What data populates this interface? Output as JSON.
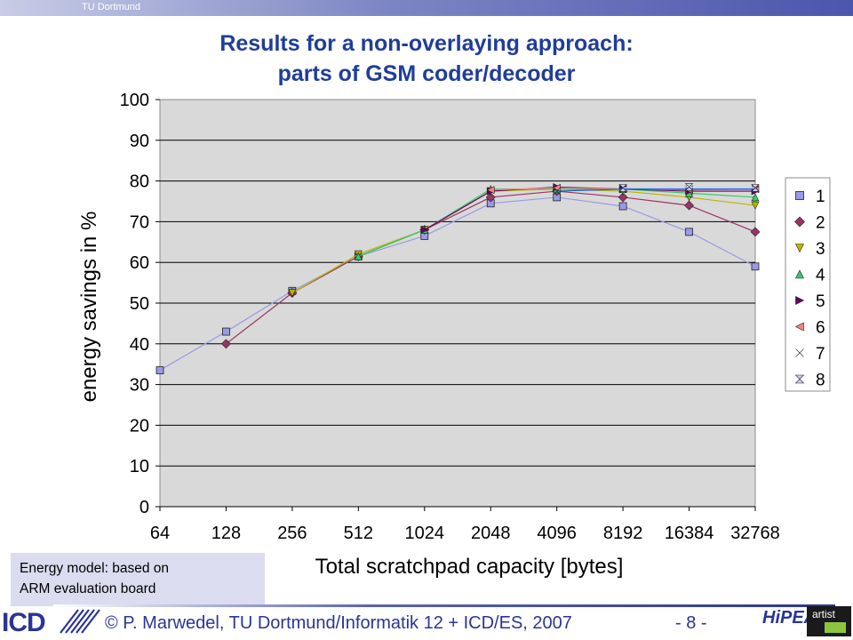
{
  "header": {
    "institution": "TU Dortmund"
  },
  "slide": {
    "title_line1": "Results for a non-overlaying approach:",
    "title_line2": "parts of GSM coder/decoder"
  },
  "note": {
    "line1": "Energy model: based on",
    "line2": "ARM evaluation board"
  },
  "footer": {
    "logo": "ICD",
    "text": "© P. Marwedel, TU Dortmund/Informatik 12 + ICD/ES, 2007",
    "page": "- 8 -",
    "hipeac_logo": "HiPEAC",
    "artist_logo": "artist"
  },
  "chart_data": {
    "type": "line",
    "xlabel": "Total scratchpad capacity [bytes]",
    "ylabel": "energy savings in %",
    "categories": [
      "64",
      "128",
      "256",
      "512",
      "1024",
      "2048",
      "4096",
      "8192",
      "16384",
      "32768"
    ],
    "ylim": [
      0,
      100
    ],
    "yticks": [
      0,
      10,
      20,
      30,
      40,
      50,
      60,
      70,
      80,
      90,
      100
    ],
    "grid": true,
    "legend_position": "right",
    "series": [
      {
        "name": "1",
        "color": "#9a9ae8",
        "marker": "square",
        "values": [
          33.5,
          43,
          53,
          61.5,
          66.5,
          74.5,
          76,
          73.8,
          67.5,
          59
        ]
      },
      {
        "name": "2",
        "color": "#993366",
        "marker": "diamond",
        "values": [
          null,
          40,
          52.5,
          61.5,
          68,
          76,
          77.5,
          76,
          74,
          67.5
        ]
      },
      {
        "name": "3",
        "color": "#b8b800",
        "marker": "triangle-down",
        "values": [
          null,
          null,
          52.5,
          62,
          68,
          77.5,
          78,
          77.5,
          76,
          74
        ]
      },
      {
        "name": "4",
        "color": "#33cc66",
        "marker": "triangle-up",
        "values": [
          null,
          null,
          null,
          61.5,
          68,
          78,
          78,
          78,
          77,
          76
        ]
      },
      {
        "name": "5",
        "color": "#660066",
        "marker": "triangle-right",
        "values": [
          null,
          null,
          null,
          null,
          68,
          77.5,
          78.5,
          78,
          77.5,
          77.5
        ]
      },
      {
        "name": "6",
        "color": "#ff8080",
        "marker": "triangle-left",
        "values": [
          null,
          null,
          null,
          null,
          null,
          77.8,
          78.3,
          78,
          77.8,
          78
        ]
      },
      {
        "name": "7",
        "color": "#0066cc",
        "marker": "bowtie",
        "values": [
          null,
          null,
          null,
          null,
          null,
          null,
          77.5,
          78,
          78,
          78
        ]
      },
      {
        "name": "8",
        "color": "#ccccff",
        "marker": "hourglass",
        "values": [
          null,
          null,
          null,
          null,
          null,
          null,
          null,
          78.3,
          78.5,
          78.3
        ]
      }
    ]
  }
}
